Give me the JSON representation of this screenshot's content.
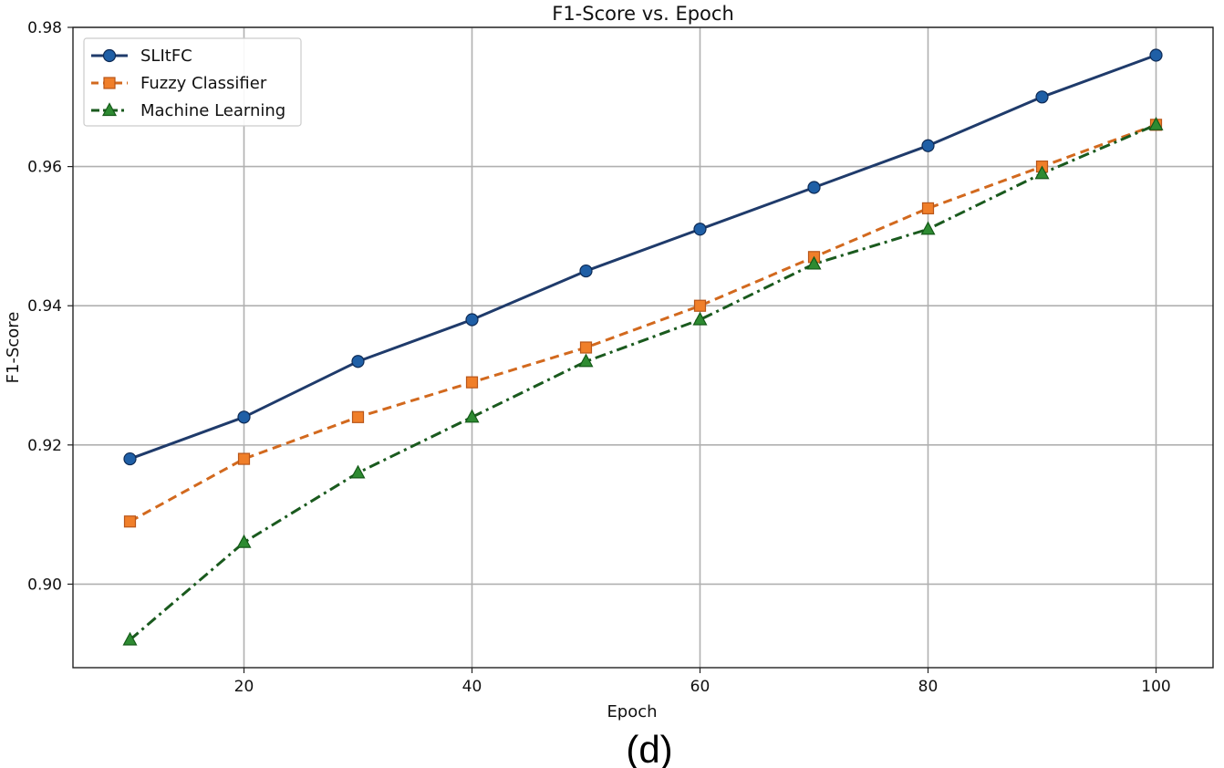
{
  "chart_data": {
    "type": "line",
    "title": "F1-Score vs. Epoch",
    "xlabel": "Epoch",
    "ylabel": "F1-Score",
    "caption": "(d)",
    "x": [
      10,
      20,
      30,
      40,
      50,
      60,
      70,
      80,
      90,
      100
    ],
    "xlim": [
      5,
      105
    ],
    "ylim": [
      0.888,
      0.98
    ],
    "xticks": [
      20,
      40,
      60,
      80,
      100
    ],
    "xtick_labels": [
      "20",
      "40",
      "60",
      "80",
      "100"
    ],
    "yticks": [
      0.9,
      0.92,
      0.94,
      0.96,
      0.98
    ],
    "ytick_labels": [
      "0.90",
      "0.92",
      "0.94",
      "0.96",
      "0.98"
    ],
    "grid": true,
    "legend_position": "top-left",
    "series": [
      {
        "name": "SLItFC",
        "color": "#1f3b6b",
        "line_style": "solid",
        "marker": "circle",
        "marker_color": "#1f5fa6",
        "values": [
          0.918,
          0.924,
          0.932,
          0.938,
          0.945,
          0.951,
          0.957,
          0.963,
          0.97,
          0.976
        ]
      },
      {
        "name": "Fuzzy Classifier",
        "color": "#d2691e",
        "line_style": "dashed",
        "marker": "square",
        "marker_color": "#f07f2a",
        "values": [
          0.909,
          0.918,
          0.924,
          0.929,
          0.934,
          0.94,
          0.947,
          0.954,
          0.96,
          0.966
        ]
      },
      {
        "name": "Machine Learning",
        "color": "#1a5a1e",
        "line_style": "dashdot",
        "marker": "triangle",
        "marker_color": "#2e8b32",
        "values": [
          0.892,
          0.906,
          0.916,
          0.924,
          0.932,
          0.938,
          0.946,
          0.951,
          0.959,
          0.966
        ]
      }
    ]
  }
}
